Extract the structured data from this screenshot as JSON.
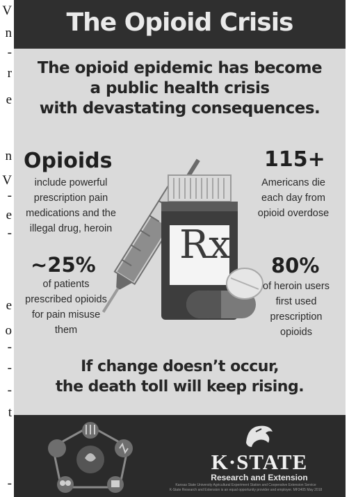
{
  "left_strip": [
    "V",
    "n",
    "-",
    "r",
    "e",
    "n",
    "V",
    "-",
    "e",
    "-",
    "e",
    "o",
    "-",
    "-",
    "-",
    "t",
    "-"
  ],
  "title": "The Opioid Crisis",
  "subtitle": [
    "The opioid epidemic has become",
    "a public health crisis",
    "with devastating consequences."
  ],
  "stats": {
    "opioids": {
      "head": "Opioids",
      "lines": [
        "include powerful",
        "prescription pain",
        "medications and the",
        "illegal drug, heroin"
      ]
    },
    "deaths": {
      "head": "115+",
      "lines": [
        "Americans die",
        "each day from",
        "opioid overdose"
      ]
    },
    "misuse": {
      "head": "~25%",
      "lines": [
        "of patients",
        "prescribed opioids",
        "for pain misuse",
        "them"
      ]
    },
    "heroin": {
      "head": "80%",
      "lines": [
        "of heroin users",
        "first used",
        "prescription",
        "opioids"
      ]
    }
  },
  "rx_label": "Rx",
  "bottom_message": [
    "If change doesn’t occur,",
    "the death toll will keep rising."
  ],
  "footer": {
    "org_name": "K·STATE",
    "org_sub": "Research and Extension",
    "fineprint": [
      "Kansas State University Agricultural Experiment Station and Cooperative Extension Service",
      "K-State Research and Extension is an equal opportunity provider and employer. MF3405 May 2018"
    ]
  },
  "colors": {
    "top_bar": "#2f2f2f",
    "poster_bg": "#dadada",
    "footer_bg": "#2b2b2b"
  }
}
